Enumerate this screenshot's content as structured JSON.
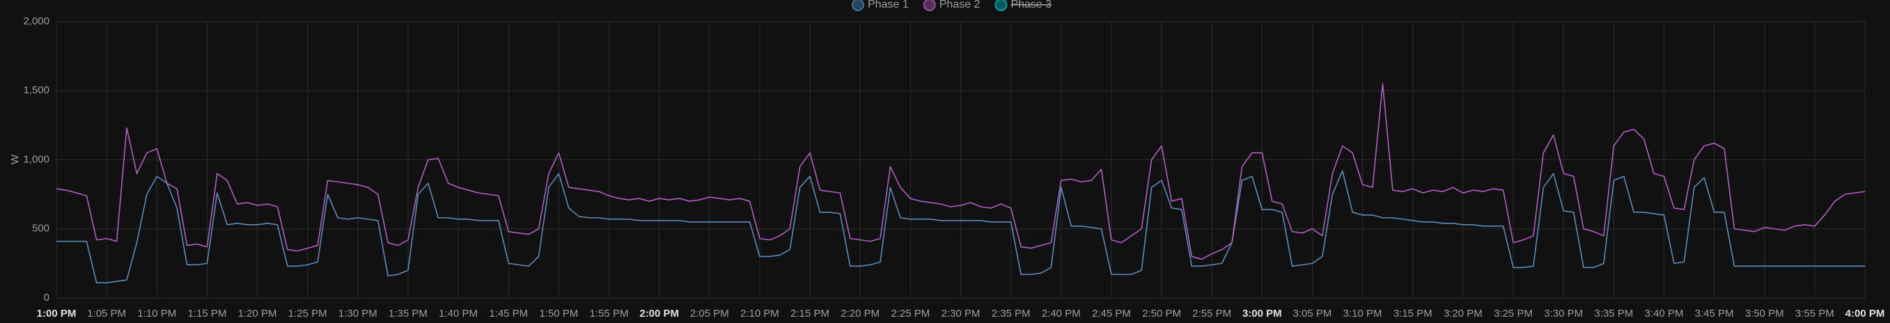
{
  "chart_data": {
    "type": "line",
    "y_label": "W",
    "x": [
      "1:00 PM",
      "1:01 PM",
      "1:02 PM",
      "1:03 PM",
      "1:04 PM",
      "1:05 PM",
      "1:06 PM",
      "1:07 PM",
      "1:08 PM",
      "1:09 PM",
      "1:10 PM",
      "1:11 PM",
      "1:12 PM",
      "1:13 PM",
      "1:14 PM",
      "1:15 PM",
      "1:16 PM",
      "1:17 PM",
      "1:18 PM",
      "1:19 PM",
      "1:20 PM",
      "1:21 PM",
      "1:22 PM",
      "1:23 PM",
      "1:24 PM",
      "1:25 PM",
      "1:26 PM",
      "1:27 PM",
      "1:28 PM",
      "1:29 PM",
      "1:30 PM",
      "1:31 PM",
      "1:32 PM",
      "1:33 PM",
      "1:34 PM",
      "1:35 PM",
      "1:36 PM",
      "1:37 PM",
      "1:38 PM",
      "1:39 PM",
      "1:40 PM",
      "1:41 PM",
      "1:42 PM",
      "1:43 PM",
      "1:44 PM",
      "1:45 PM",
      "1:46 PM",
      "1:47 PM",
      "1:48 PM",
      "1:49 PM",
      "1:50 PM",
      "1:51 PM",
      "1:52 PM",
      "1:53 PM",
      "1:54 PM",
      "1:55 PM",
      "1:56 PM",
      "1:57 PM",
      "1:58 PM",
      "1:59 PM",
      "2:00 PM",
      "2:01 PM",
      "2:02 PM",
      "2:03 PM",
      "2:04 PM",
      "2:05 PM",
      "2:06 PM",
      "2:07 PM",
      "2:08 PM",
      "2:09 PM",
      "2:10 PM",
      "2:11 PM",
      "2:12 PM",
      "2:13 PM",
      "2:14 PM",
      "2:15 PM",
      "2:16 PM",
      "2:17 PM",
      "2:18 PM",
      "2:19 PM",
      "2:20 PM",
      "2:21 PM",
      "2:22 PM",
      "2:23 PM",
      "2:24 PM",
      "2:25 PM",
      "2:26 PM",
      "2:27 PM",
      "2:28 PM",
      "2:29 PM",
      "2:30 PM",
      "2:31 PM",
      "2:32 PM",
      "2:33 PM",
      "2:34 PM",
      "2:35 PM",
      "2:36 PM",
      "2:37 PM",
      "2:38 PM",
      "2:39 PM",
      "2:40 PM",
      "2:41 PM",
      "2:42 PM",
      "2:43 PM",
      "2:44 PM",
      "2:45 PM",
      "2:46 PM",
      "2:47 PM",
      "2:48 PM",
      "2:49 PM",
      "2:50 PM",
      "2:51 PM",
      "2:52 PM",
      "2:53 PM",
      "2:54 PM",
      "2:55 PM",
      "2:56 PM",
      "2:57 PM",
      "2:58 PM",
      "2:59 PM",
      "3:00 PM",
      "3:01 PM",
      "3:02 PM",
      "3:03 PM",
      "3:04 PM",
      "3:05 PM",
      "3:06 PM",
      "3:07 PM",
      "3:08 PM",
      "3:09 PM",
      "3:10 PM",
      "3:11 PM",
      "3:12 PM",
      "3:13 PM",
      "3:14 PM",
      "3:15 PM",
      "3:16 PM",
      "3:17 PM",
      "3:18 PM",
      "3:19 PM",
      "3:20 PM",
      "3:21 PM",
      "3:22 PM",
      "3:23 PM",
      "3:24 PM",
      "3:25 PM",
      "3:26 PM",
      "3:27 PM",
      "3:28 PM",
      "3:29 PM",
      "3:30 PM",
      "3:31 PM",
      "3:32 PM",
      "3:33 PM",
      "3:34 PM",
      "3:35 PM",
      "3:36 PM",
      "3:37 PM",
      "3:38 PM",
      "3:39 PM",
      "3:40 PM",
      "3:41 PM",
      "3:42 PM",
      "3:43 PM",
      "3:44 PM",
      "3:45 PM",
      "3:46 PM",
      "3:47 PM",
      "3:48 PM",
      "3:49 PM",
      "3:50 PM",
      "3:51 PM",
      "3:52 PM",
      "3:53 PM",
      "3:54 PM",
      "3:55 PM",
      "3:56 PM",
      "3:57 PM",
      "3:58 PM",
      "3:59 PM",
      "4:00 PM"
    ],
    "xlim": [
      "1:00 PM",
      "4:00 PM"
    ],
    "xticks": [
      "1:00 PM",
      "1:05 PM",
      "1:10 PM",
      "1:15 PM",
      "1:20 PM",
      "1:25 PM",
      "1:30 PM",
      "1:35 PM",
      "1:40 PM",
      "1:45 PM",
      "1:50 PM",
      "1:55 PM",
      "2:00 PM",
      "2:05 PM",
      "2:10 PM",
      "2:15 PM",
      "2:20 PM",
      "2:25 PM",
      "2:30 PM",
      "2:35 PM",
      "2:40 PM",
      "2:45 PM",
      "2:50 PM",
      "2:55 PM",
      "3:00 PM",
      "3:05 PM",
      "3:10 PM",
      "3:15 PM",
      "3:20 PM",
      "3:25 PM",
      "3:30 PM",
      "3:35 PM",
      "3:40 PM",
      "3:45 PM",
      "3:50 PM",
      "3:55 PM",
      "4:00 PM"
    ],
    "ylim": [
      0,
      2000
    ],
    "yticks": [
      0,
      500,
      {
        "value": 1000,
        "label": "1,000"
      },
      {
        "value": 1500,
        "label": "1,500"
      },
      {
        "value": 2000,
        "label": "2,000"
      }
    ],
    "grid": true,
    "series": [
      {
        "name": "Phase 1",
        "color": "#44739e",
        "line_color": "#5a8dba",
        "hidden": false,
        "values": [
          410,
          410,
          410,
          410,
          110,
          110,
          120,
          130,
          400,
          750,
          880,
          830,
          650,
          240,
          240,
          250,
          760,
          530,
          540,
          530,
          530,
          540,
          530,
          230,
          230,
          240,
          260,
          750,
          580,
          570,
          580,
          570,
          560,
          160,
          170,
          200,
          750,
          830,
          580,
          580,
          570,
          570,
          560,
          560,
          560,
          250,
          240,
          230,
          300,
          800,
          900,
          650,
          590,
          580,
          580,
          570,
          570,
          570,
          560,
          560,
          560,
          560,
          560,
          550,
          550,
          550,
          550,
          550,
          550,
          550,
          300,
          300,
          310,
          350,
          800,
          880,
          620,
          620,
          610,
          230,
          230,
          240,
          260,
          800,
          580,
          570,
          570,
          570,
          560,
          560,
          560,
          560,
          560,
          550,
          550,
          550,
          170,
          170,
          180,
          220,
          800,
          520,
          520,
          510,
          500,
          170,
          170,
          170,
          200,
          800,
          850,
          650,
          640,
          230,
          230,
          240,
          250,
          400,
          850,
          880,
          640,
          640,
          620,
          230,
          240,
          250,
          300,
          750,
          920,
          620,
          600,
          600,
          580,
          580,
          570,
          560,
          550,
          550,
          540,
          540,
          530,
          530,
          520,
          520,
          520,
          220,
          220,
          230,
          800,
          900,
          630,
          620,
          220,
          220,
          250,
          850,
          880,
          620,
          620,
          610,
          600,
          250,
          260,
          800,
          870,
          620,
          620,
          230,
          230,
          230,
          230,
          230,
          230,
          230,
          230,
          230,
          230,
          230,
          230,
          230,
          230
        ]
      },
      {
        "name": "Phase 2",
        "color": "#984ea3",
        "line_color": "#b15fc2",
        "hidden": false,
        "values": [
          790,
          780,
          760,
          740,
          420,
          430,
          410,
          1230,
          900,
          1050,
          1080,
          830,
          790,
          380,
          390,
          370,
          900,
          850,
          680,
          690,
          670,
          680,
          660,
          350,
          340,
          360,
          380,
          850,
          840,
          830,
          820,
          800,
          750,
          400,
          380,
          420,
          800,
          1000,
          1010,
          830,
          800,
          780,
          760,
          750,
          740,
          480,
          470,
          460,
          500,
          900,
          1050,
          800,
          790,
          780,
          770,
          740,
          720,
          710,
          720,
          700,
          720,
          710,
          720,
          700,
          710,
          730,
          720,
          710,
          720,
          700,
          430,
          420,
          450,
          500,
          950,
          1050,
          780,
          770,
          760,
          430,
          420,
          410,
          430,
          950,
          800,
          720,
          700,
          690,
          680,
          660,
          670,
          690,
          660,
          650,
          680,
          650,
          370,
          360,
          380,
          400,
          850,
          860,
          840,
          850,
          930,
          420,
          400,
          450,
          500,
          1000,
          1100,
          700,
          720,
          300,
          280,
          320,
          350,
          400,
          950,
          1050,
          1050,
          700,
          680,
          480,
          470,
          500,
          450,
          900,
          1100,
          1050,
          820,
          800,
          1550,
          780,
          770,
          790,
          760,
          780,
          770,
          800,
          760,
          780,
          770,
          790,
          780,
          400,
          420,
          450,
          1050,
          1180,
          900,
          880,
          500,
          480,
          450,
          1100,
          1200,
          1220,
          1150,
          900,
          880,
          650,
          640,
          1000,
          1100,
          1120,
          1080,
          500,
          490,
          480,
          510,
          500,
          490,
          520,
          530,
          520,
          600,
          700,
          750,
          760,
          770
        ]
      },
      {
        "name": "Phase 3",
        "color": "#00a6a6",
        "hidden": true
      }
    ]
  }
}
